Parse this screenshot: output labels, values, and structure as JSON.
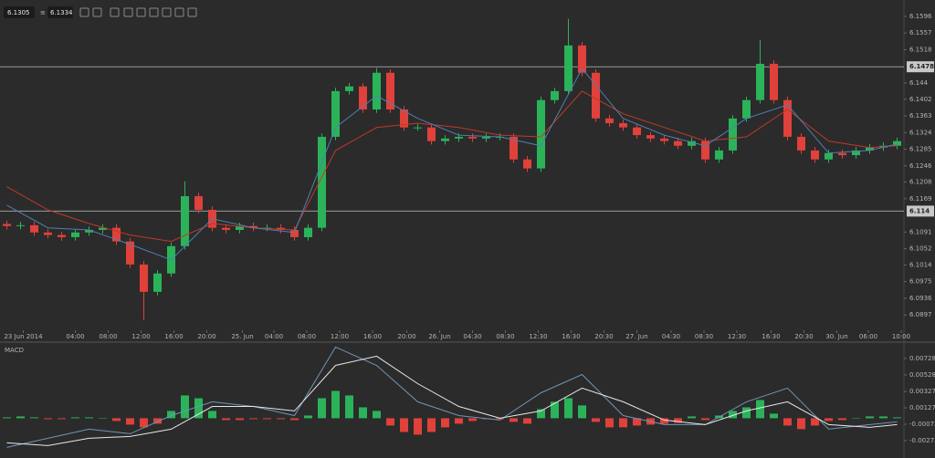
{
  "toolbar": {
    "bid": "6.1305",
    "ask": "6.1334"
  },
  "chart_data": [
    {
      "type": "candlestick",
      "x": [
        0,
        1,
        2,
        3,
        4,
        5,
        6,
        7,
        8,
        9,
        10,
        11,
        12,
        13,
        14,
        15,
        16,
        17,
        18,
        19,
        20,
        21,
        22,
        23,
        24,
        25,
        26,
        27,
        28,
        29,
        30,
        31,
        32,
        33,
        34,
        35,
        36,
        37,
        38,
        39,
        40,
        41,
        42,
        43,
        44,
        45,
        46,
        47,
        48,
        49,
        50,
        51,
        52,
        53,
        54,
        55,
        56,
        57,
        58,
        59,
        60,
        61,
        62,
        63,
        64,
        65
      ],
      "open": [
        6.111,
        6.1105,
        6.1107,
        6.109,
        6.1084,
        6.1079,
        6.109,
        6.1096,
        6.1101,
        6.1069,
        6.1015,
        6.0951,
        6.0994,
        6.1058,
        6.1175,
        6.1143,
        6.1101,
        6.1096,
        6.1105,
        6.1101,
        6.1101,
        6.1096,
        6.1079,
        6.1101,
        6.1314,
        6.1421,
        6.1432,
        6.1378,
        6.1464,
        6.1378,
        6.1336,
        6.1336,
        6.1304,
        6.131,
        6.1314,
        6.131,
        6.1314,
        6.1314,
        6.1261,
        6.124,
        6.14,
        6.1421,
        6.1528,
        6.1464,
        6.1357,
        6.1346,
        6.1336,
        6.1318,
        6.131,
        6.1304,
        6.1293,
        6.1304,
        6.1261,
        6.1282,
        6.1357,
        6.14,
        6.1485,
        6.14,
        6.1314,
        6.1282,
        6.1261,
        6.1276,
        6.1271,
        6.1282,
        6.1289,
        6.1293
      ],
      "high": [
        6.1118,
        6.1115,
        6.1115,
        6.1098,
        6.1092,
        6.1098,
        6.1104,
        6.1109,
        6.1109,
        6.1077,
        6.1023,
        6.1002,
        6.1066,
        6.121,
        6.1183,
        6.1151,
        6.1109,
        6.1113,
        6.1113,
        6.1109,
        6.1109,
        6.1104,
        6.1109,
        6.1322,
        6.1429,
        6.144,
        6.144,
        6.1475,
        6.1472,
        6.1386,
        6.1344,
        6.1344,
        6.1318,
        6.1322,
        6.1322,
        6.1322,
        6.1322,
        6.1322,
        6.1269,
        6.1408,
        6.1429,
        6.159,
        6.1536,
        6.1472,
        6.1365,
        6.1354,
        6.1344,
        6.1326,
        6.1318,
        6.1312,
        6.1312,
        6.1312,
        6.129,
        6.1365,
        6.1408,
        6.154,
        6.1493,
        6.1408,
        6.1322,
        6.129,
        6.1284,
        6.1284,
        6.129,
        6.1297,
        6.1301,
        6.1312
      ],
      "low": [
        6.1097,
        6.1097,
        6.1082,
        6.1076,
        6.1071,
        6.1071,
        6.1082,
        6.1088,
        6.1061,
        6.1007,
        6.0885,
        6.0943,
        6.0986,
        6.105,
        6.1135,
        6.1093,
        6.1088,
        6.1088,
        6.1093,
        6.1093,
        6.1088,
        6.1071,
        6.1071,
        6.1093,
        6.1306,
        6.1413,
        6.137,
        6.137,
        6.137,
        6.1328,
        6.1328,
        6.1296,
        6.1296,
        6.1302,
        6.1302,
        6.1302,
        6.1306,
        6.1253,
        6.1232,
        6.1232,
        6.1392,
        6.1413,
        6.1456,
        6.1349,
        6.1338,
        6.1328,
        6.131,
        6.1302,
        6.1296,
        6.1285,
        6.1285,
        6.1253,
        6.1253,
        6.1274,
        6.1349,
        6.1392,
        6.1392,
        6.1306,
        6.1274,
        6.1253,
        6.1253,
        6.1263,
        6.1263,
        6.1274,
        6.1281,
        6.1285
      ],
      "close": [
        6.1105,
        6.1107,
        6.109,
        6.1084,
        6.1079,
        6.109,
        6.1096,
        6.1101,
        6.1069,
        6.1015,
        6.0951,
        6.0994,
        6.1058,
        6.1175,
        6.1143,
        6.1101,
        6.1096,
        6.1105,
        6.1101,
        6.1101,
        6.1096,
        6.1079,
        6.1101,
        6.1314,
        6.1421,
        6.1432,
        6.1378,
        6.1464,
        6.1378,
        6.1336,
        6.1336,
        6.1304,
        6.131,
        6.1314,
        6.131,
        6.1314,
        6.1314,
        6.1261,
        6.124,
        6.14,
        6.1421,
        6.1528,
        6.1464,
        6.1357,
        6.1346,
        6.1336,
        6.1318,
        6.131,
        6.1304,
        6.1293,
        6.1304,
        6.1261,
        6.1282,
        6.1357,
        6.14,
        6.1485,
        6.14,
        6.1314,
        6.1282,
        6.1261,
        6.1276,
        6.1271,
        6.1282,
        6.1289,
        6.1293,
        6.1304
      ],
      "up_color": "#2bb35a",
      "down_color": "#e0413a",
      "overlays": [
        {
          "color": "#c0392b",
          "x": [
            0,
            3,
            6,
            9,
            12,
            15,
            18,
            21,
            24,
            27,
            30,
            33,
            36,
            39,
            42,
            45,
            48,
            51,
            54,
            57,
            60,
            63,
            65
          ],
          "values": [
            6.1197,
            6.1143,
            6.1111,
            6.1084,
            6.1069,
            6.1111,
            6.1101,
            6.1096,
            6.1282,
            6.1336,
            6.1346,
            6.1336,
            6.1318,
            6.1314,
            6.1421,
            6.1368,
            6.1336,
            6.1304,
            6.1314,
            6.1378,
            6.1304,
            6.1289,
            6.1293
          ]
        },
        {
          "color": "#4f7fb0",
          "x": [
            0,
            3,
            6,
            9,
            12,
            15,
            18,
            21,
            24,
            27,
            30,
            33,
            36,
            39,
            42,
            45,
            48,
            51,
            54,
            57,
            60,
            63,
            65
          ],
          "values": [
            6.1154,
            6.1101,
            6.1096,
            6.1062,
            6.1026,
            6.1122,
            6.1101,
            6.109,
            6.1336,
            6.141,
            6.1357,
            6.1318,
            6.1314,
            6.1293,
            6.1474,
            6.1357,
            6.1318,
            6.1293,
            6.1357,
            6.1389,
            6.1276,
            6.1282,
            6.1297
          ]
        }
      ],
      "hlines": [
        6.1478,
        6.114
      ],
      "xlim": [
        -0.5,
        65.5
      ],
      "ylim": [
        6.0861,
        6.1613
      ],
      "yticks": [
        6.1596,
        6.1557,
        6.1518,
        6.144,
        6.1402,
        6.1363,
        6.1324,
        6.1285,
        6.1246,
        6.1208,
        6.1169,
        6.1091,
        6.1052,
        6.1014,
        6.0975,
        6.0936,
        6.0897
      ],
      "xticks": [
        {
          "value": 1.2,
          "label": "23 Jun 2014"
        },
        {
          "value": 5.0,
          "label": "04:00"
        },
        {
          "value": 7.4,
          "label": "08:00"
        },
        {
          "value": 9.8,
          "label": "12:00"
        },
        {
          "value": 12.2,
          "label": "16:00"
        },
        {
          "value": 14.6,
          "label": "20:00"
        },
        {
          "value": 17.2,
          "label": "25. Jun"
        },
        {
          "value": 19.5,
          "label": "04:00"
        },
        {
          "value": 21.9,
          "label": "08:00"
        },
        {
          "value": 24.3,
          "label": "12:00"
        },
        {
          "value": 26.7,
          "label": "16:00"
        },
        {
          "value": 29.2,
          "label": "20:00"
        },
        {
          "value": 31.6,
          "label": "26. Jun"
        },
        {
          "value": 34.0,
          "label": "04:30"
        },
        {
          "value": 36.4,
          "label": "08:30"
        },
        {
          "value": 38.8,
          "label": "12:30"
        },
        {
          "value": 41.2,
          "label": "16:30"
        },
        {
          "value": 43.6,
          "label": "20:30"
        },
        {
          "value": 46.0,
          "label": "27. Jun"
        },
        {
          "value": 48.5,
          "label": "04:30"
        },
        {
          "value": 50.9,
          "label": "08:30"
        },
        {
          "value": 53.3,
          "label": "12:30"
        },
        {
          "value": 55.8,
          "label": "16:30"
        },
        {
          "value": 58.2,
          "label": "20:30"
        },
        {
          "value": 60.6,
          "label": "30. Jun"
        },
        {
          "value": 62.9,
          "label": "06:00"
        },
        {
          "value": 65.3,
          "label": "10:00"
        }
      ]
    },
    {
      "type": "macd",
      "title": "MACD",
      "x": [
        0,
        1,
        2,
        3,
        4,
        5,
        6,
        7,
        8,
        9,
        10,
        11,
        12,
        13,
        14,
        15,
        16,
        17,
        18,
        19,
        20,
        21,
        22,
        23,
        24,
        25,
        26,
        27,
        28,
        29,
        30,
        31,
        32,
        33,
        34,
        35,
        36,
        37,
        38,
        39,
        40,
        41,
        42,
        43,
        44,
        45,
        46,
        47,
        48,
        49,
        50,
        51,
        52,
        53,
        54,
        55,
        56,
        57,
        58,
        59,
        60,
        61,
        62,
        63,
        64,
        65
      ],
      "histogram": [
        0.00011,
        0.00022,
        0.00011,
        -0.00011,
        -0.00011,
        0.00011,
        0.00011,
        0,
        -0.00033,
        -0.00078,
        -0.00111,
        -0.00067,
        0.00089,
        0.00278,
        0.00244,
        0.00089,
        -0.00022,
        -0.00022,
        -0.00011,
        -0.00011,
        -0.00011,
        -0.00022,
        0.00033,
        0.00244,
        0.00333,
        0.00278,
        0.00133,
        0.00089,
        -0.00089,
        -0.00167,
        -0.002,
        -0.00167,
        -0.00111,
        -0.00067,
        -0.00033,
        -0.00011,
        -0.00011,
        -0.00044,
        -0.00067,
        0.00111,
        0.002,
        0.00244,
        0.00156,
        -0.00044,
        -0.00111,
        -0.00111,
        -0.00089,
        -0.00078,
        -0.00067,
        -0.00056,
        0.00022,
        -0.00022,
        0.00033,
        0.00089,
        0.00133,
        0.00222,
        0.00056,
        -0.00089,
        -0.00133,
        -0.00089,
        -0.00033,
        -0.00022,
        0,
        0.00022,
        0.00022,
        0.00011
      ],
      "up_color": "#2bb35a",
      "down_color": "#e0413a",
      "lines": [
        {
          "color": "#6f95b8",
          "x": [
            0,
            3,
            6,
            9,
            12,
            15,
            18,
            21,
            24,
            27,
            30,
            33,
            36,
            39,
            42,
            45,
            48,
            51,
            54,
            57,
            60,
            63,
            65
          ],
          "values": [
            -0.00356,
            -0.00244,
            -0.00133,
            -0.00189,
            0.00033,
            0.002,
            0.00144,
            0.00033,
            0.00867,
            0.00644,
            0.002,
            0.00033,
            -0.00022,
            0.00311,
            0.00533,
            0.00033,
            -0.00078,
            -0.00078,
            0.002,
            0.00367,
            -0.00133,
            -0.00078,
            -0.00044
          ]
        },
        {
          "color": "#e8e8e8",
          "x": [
            0,
            3,
            6,
            9,
            12,
            15,
            18,
            21,
            24,
            27,
            30,
            33,
            36,
            39,
            42,
            45,
            48,
            51,
            54,
            57,
            60,
            63,
            65
          ],
          "values": [
            -0.003,
            -0.00333,
            -0.00244,
            -0.00222,
            -0.00133,
            0.00144,
            0.00144,
            0.00089,
            0.00644,
            0.00756,
            0.00422,
            0.00144,
            0,
            0.00089,
            0.00367,
            0.002,
            -0.00022,
            -0.00078,
            0.00089,
            0.002,
            -0.00078,
            -0.00111,
            -0.00078
          ]
        }
      ],
      "xlim": [
        -0.5,
        65.5
      ],
      "ylim": [
        -0.00429,
        0.00872
      ],
      "yticks": [
        0.00728,
        0.00528,
        0.00327,
        0.00127,
        -0.00073,
        -0.00273
      ]
    }
  ]
}
